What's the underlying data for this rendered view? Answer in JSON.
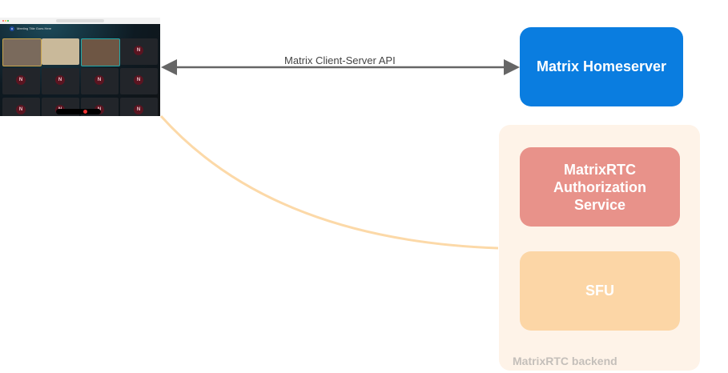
{
  "client_screenshot": {
    "meeting_title": "Meeting Title Goes Here",
    "avatar_letter": "M",
    "placeholder_initial": "N"
  },
  "edges": {
    "client_server_api": "Matrix Client-Server API"
  },
  "nodes": {
    "homeserver": "Matrix Homeserver",
    "auth_service": "MatrixRTC Authorization Service",
    "sfu": "SFU",
    "backend_group": "MatrixRTC backend"
  },
  "colors": {
    "homeserver": "#0a7de0",
    "auth_service": "#e8928a",
    "sfu": "#fcd6a6",
    "backend_group": "#fef3e8",
    "connection_line": "#fcd9a8",
    "api_arrow": "#666666"
  }
}
